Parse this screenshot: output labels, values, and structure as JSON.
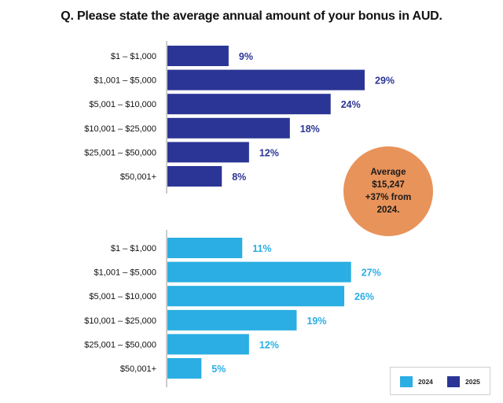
{
  "title": "Q. Please state the average annual amount of your bonus in AUD.",
  "colors": {
    "y2025": "#2b3595",
    "y2024": "#2aaee3",
    "badge": "#e8935a"
  },
  "badge": {
    "line1": "Average",
    "line2": "$15,247",
    "line3": "+37% from",
    "line4": "2024."
  },
  "legend": {
    "series_a": "2024",
    "series_b": "2025"
  },
  "chart_data": [
    {
      "type": "bar",
      "orientation": "horizontal",
      "categories": [
        "$1 – $1,000",
        "$1,001 – $5,000",
        "$5,001 – $10,000",
        "$10,001 – $25,000",
        "$25,001 – $50,000",
        "$50,001+"
      ],
      "series": [
        {
          "name": "2025",
          "values": [
            9,
            29,
            24,
            18,
            12,
            8
          ],
          "labels": [
            "9%",
            "29%",
            "24%",
            "18%",
            "12%",
            "8%"
          ]
        }
      ],
      "xlim": [
        0,
        30
      ],
      "title": "Q. Please state the average annual amount of your bonus in AUD."
    },
    {
      "type": "bar",
      "orientation": "horizontal",
      "categories": [
        "$1 – $1,000",
        "$1,001 – $5,000",
        "$5,001 – $10,000",
        "$10,001 – $25,000",
        "$25,001 – $50,000",
        "$50,001+"
      ],
      "series": [
        {
          "name": "2024",
          "values": [
            11,
            27,
            26,
            19,
            12,
            5
          ],
          "labels": [
            "11%",
            "27%",
            "26%",
            "19%",
            "12%",
            "5%"
          ]
        }
      ],
      "xlim": [
        0,
        30
      ]
    }
  ]
}
